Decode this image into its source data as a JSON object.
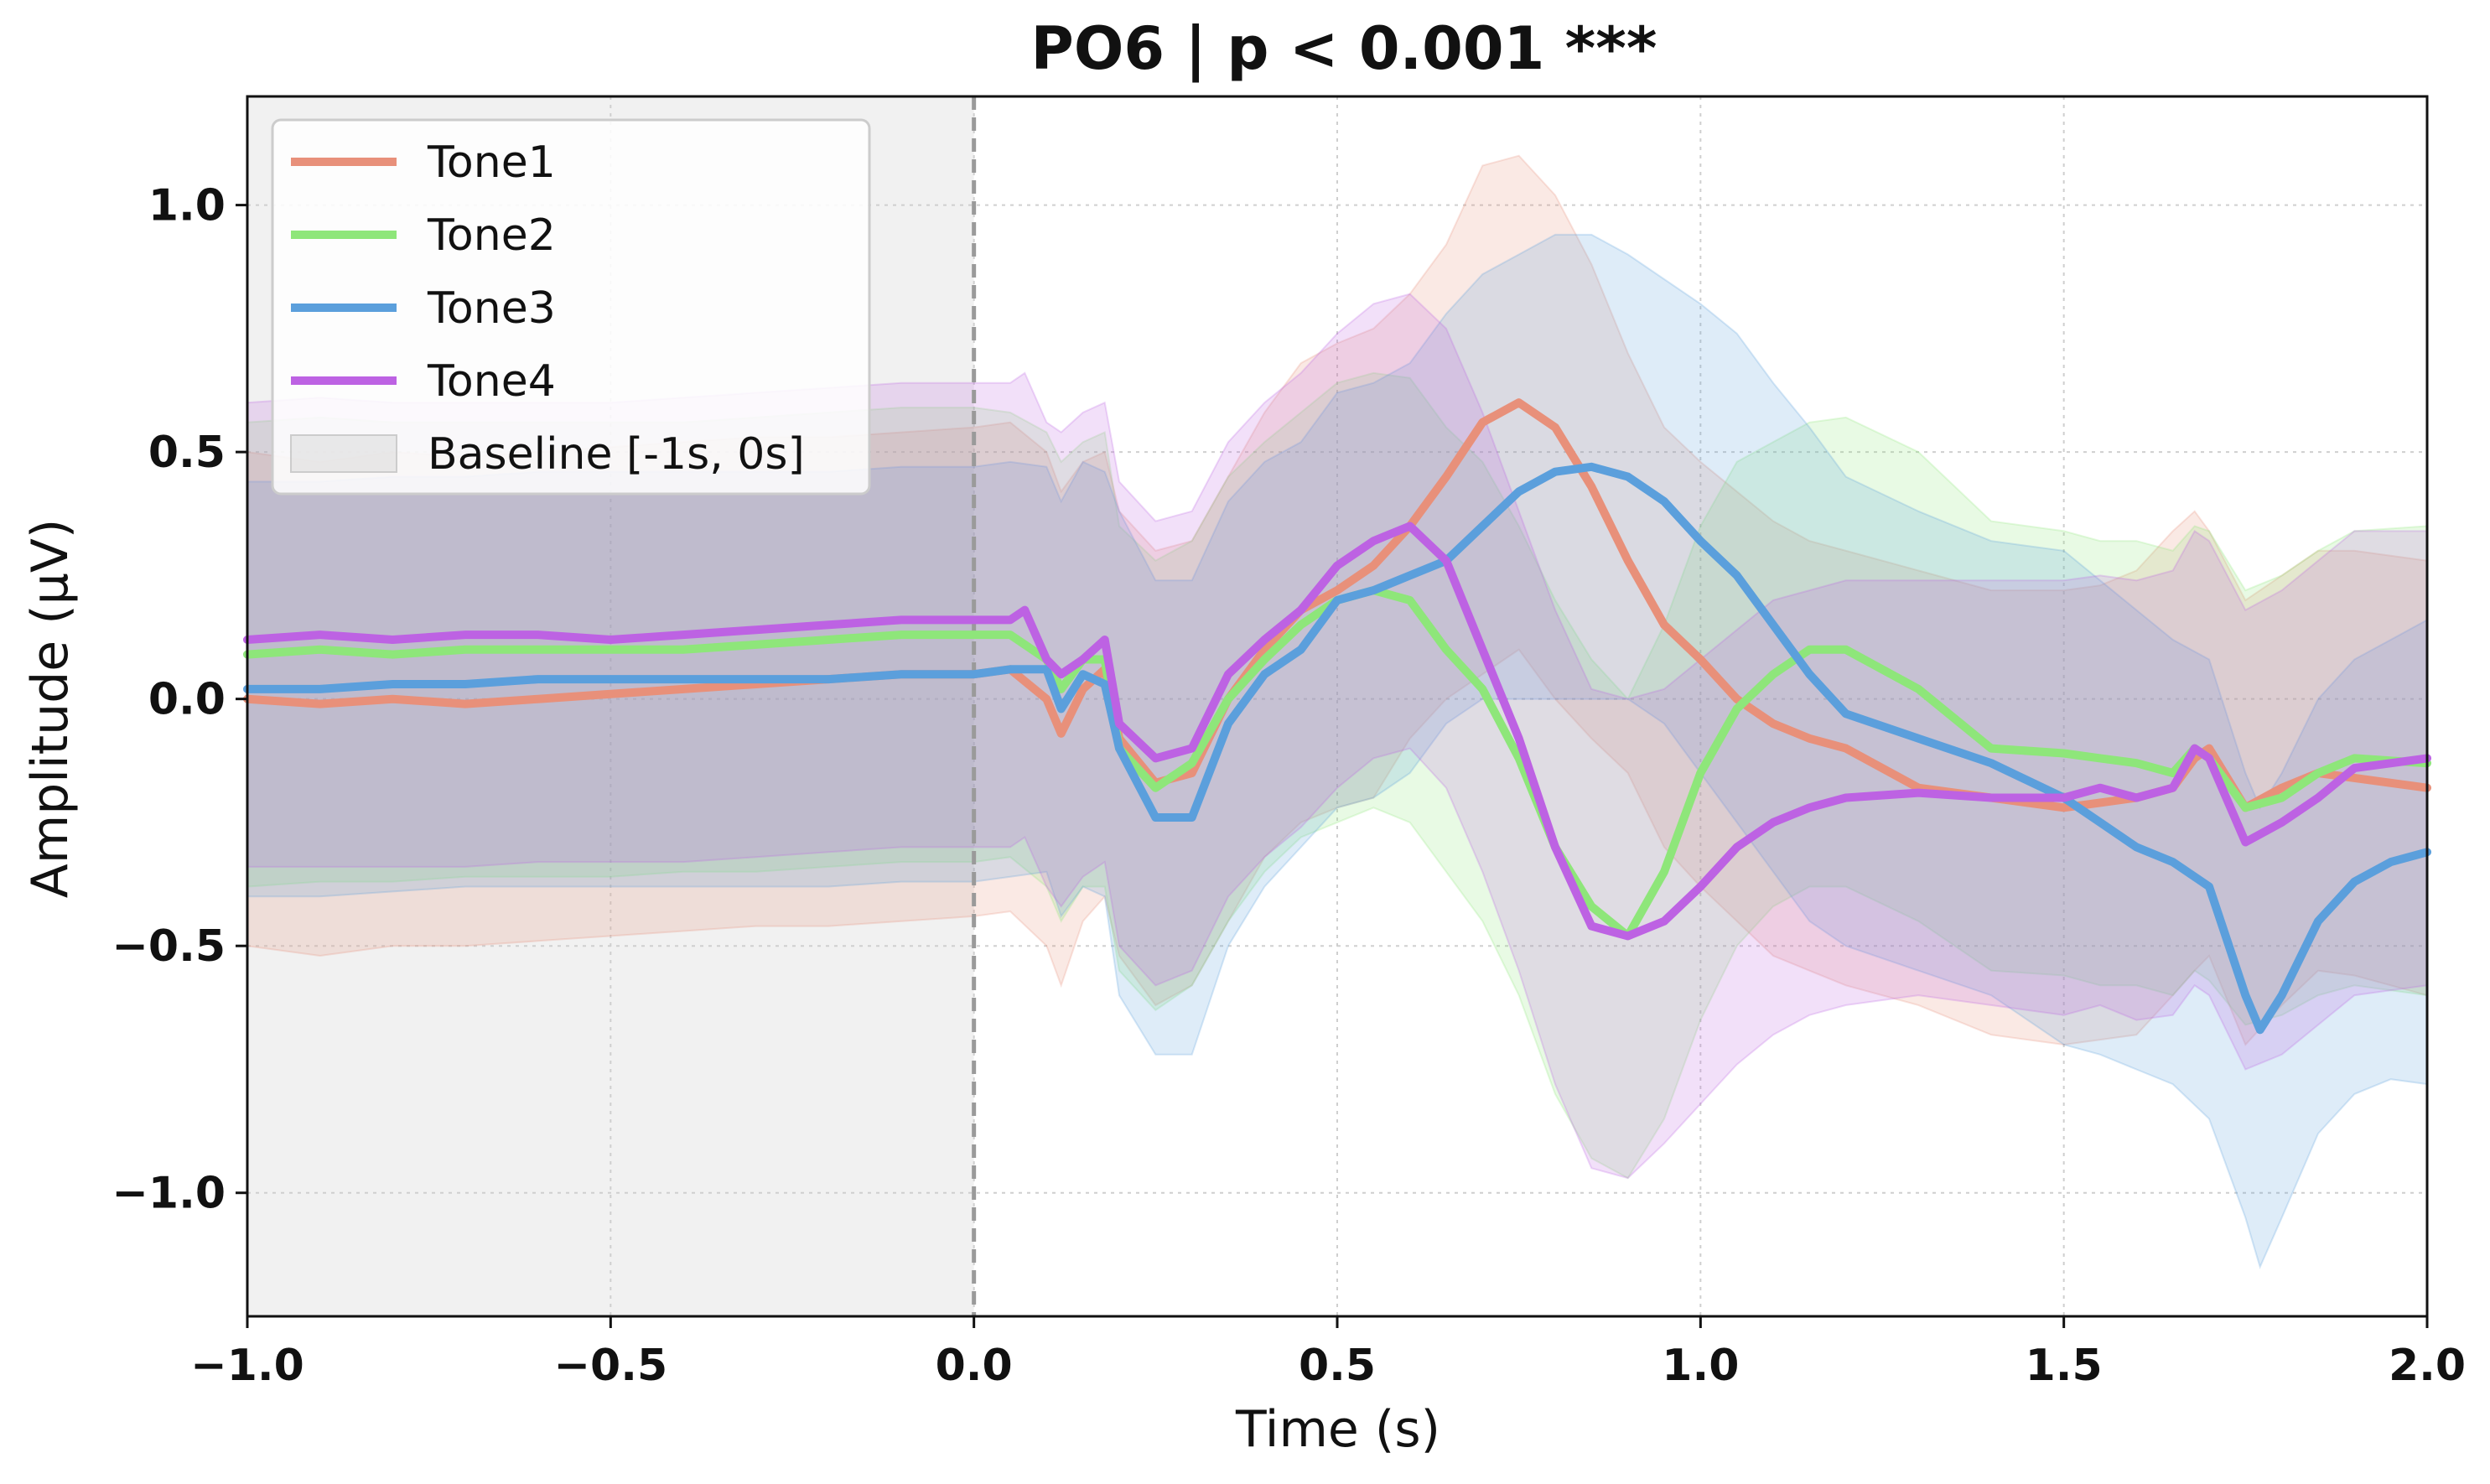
{
  "chart_data": {
    "type": "line",
    "title": "PO6 | p < 0.001 ***",
    "xlabel": "Time (s)",
    "ylabel": "Amplitude (μV)",
    "xlim": [
      -1.0,
      2.0
    ],
    "ylim": [
      -1.25,
      1.22
    ],
    "xticks": [
      -1.0,
      -0.5,
      0.0,
      0.5,
      1.0,
      1.5,
      2.0
    ],
    "xtick_labels": [
      "−1.0",
      "−0.5",
      "0.0",
      "0.5",
      "1.0",
      "1.5",
      "2.0"
    ],
    "yticks": [
      1.0,
      0.5,
      0.0,
      -0.5,
      -1.0
    ],
    "ytick_labels": [
      "1.0",
      "0.5",
      "0.0",
      "−0.5",
      "−1.0"
    ],
    "grid": true,
    "legend_position": "top-left",
    "baseline": {
      "label": "Baseline [-1s, 0s]",
      "start": -1.0,
      "end": 0.0,
      "color": "#d8d8d8"
    },
    "onset_marker": {
      "x": 0.0,
      "color": "#9a9a9a"
    },
    "series": [
      {
        "name": "Tone1",
        "color": "#e8907a",
        "x": [
          -1.0,
          -0.9,
          -0.8,
          -0.7,
          -0.6,
          -0.5,
          -0.4,
          -0.3,
          -0.2,
          -0.1,
          0.0,
          0.05,
          0.1,
          0.12,
          0.15,
          0.18,
          0.2,
          0.25,
          0.3,
          0.35,
          0.4,
          0.45,
          0.5,
          0.55,
          0.6,
          0.65,
          0.7,
          0.75,
          0.8,
          0.85,
          0.9,
          0.95,
          1.0,
          1.05,
          1.1,
          1.15,
          1.2,
          1.3,
          1.4,
          1.5,
          1.55,
          1.6,
          1.65,
          1.68,
          1.7,
          1.75,
          1.8,
          1.85,
          1.9,
          2.0
        ],
        "y": [
          0.0,
          -0.01,
          0.0,
          -0.01,
          0.0,
          0.01,
          0.02,
          0.03,
          0.04,
          0.05,
          0.05,
          0.06,
          0.0,
          -0.07,
          0.02,
          0.06,
          -0.08,
          -0.17,
          -0.15,
          0.0,
          0.1,
          0.18,
          0.22,
          0.27,
          0.35,
          0.45,
          0.56,
          0.6,
          0.55,
          0.43,
          0.28,
          0.15,
          0.08,
          0.0,
          -0.05,
          -0.08,
          -0.1,
          -0.18,
          -0.2,
          -0.22,
          -0.21,
          -0.2,
          -0.18,
          -0.12,
          -0.1,
          -0.22,
          -0.18,
          -0.15,
          -0.16,
          -0.18
        ],
        "lower": [
          -0.5,
          -0.52,
          -0.5,
          -0.5,
          -0.49,
          -0.48,
          -0.47,
          -0.46,
          -0.46,
          -0.45,
          -0.44,
          -0.43,
          -0.5,
          -0.58,
          -0.45,
          -0.4,
          -0.52,
          -0.62,
          -0.58,
          -0.45,
          -0.32,
          -0.25,
          -0.22,
          -0.2,
          -0.08,
          0.0,
          0.05,
          0.1,
          0.0,
          -0.08,
          -0.15,
          -0.3,
          -0.38,
          -0.45,
          -0.52,
          -0.55,
          -0.58,
          -0.62,
          -0.68,
          -0.7,
          -0.69,
          -0.68,
          -0.6,
          -0.55,
          -0.52,
          -0.7,
          -0.62,
          -0.55,
          -0.56,
          -0.6
        ],
        "upper": [
          0.5,
          0.48,
          0.5,
          0.49,
          0.5,
          0.51,
          0.52,
          0.53,
          0.53,
          0.54,
          0.55,
          0.56,
          0.5,
          0.42,
          0.48,
          0.5,
          0.38,
          0.3,
          0.32,
          0.45,
          0.58,
          0.68,
          0.72,
          0.75,
          0.82,
          0.92,
          1.08,
          1.1,
          1.02,
          0.88,
          0.7,
          0.55,
          0.48,
          0.42,
          0.36,
          0.32,
          0.3,
          0.26,
          0.22,
          0.22,
          0.23,
          0.26,
          0.34,
          0.38,
          0.34,
          0.2,
          0.25,
          0.3,
          0.3,
          0.28
        ]
      },
      {
        "name": "Tone2",
        "color": "#8ee67a",
        "x": [
          -1.0,
          -0.9,
          -0.8,
          -0.7,
          -0.6,
          -0.5,
          -0.4,
          -0.3,
          -0.2,
          -0.1,
          0.0,
          0.05,
          0.1,
          0.12,
          0.15,
          0.18,
          0.2,
          0.25,
          0.3,
          0.35,
          0.4,
          0.45,
          0.5,
          0.55,
          0.6,
          0.65,
          0.7,
          0.75,
          0.8,
          0.85,
          0.9,
          0.95,
          1.0,
          1.05,
          1.1,
          1.15,
          1.2,
          1.3,
          1.4,
          1.5,
          1.55,
          1.6,
          1.65,
          1.68,
          1.7,
          1.75,
          1.8,
          1.85,
          1.9,
          2.0
        ],
        "y": [
          0.09,
          0.1,
          0.09,
          0.1,
          0.1,
          0.1,
          0.1,
          0.11,
          0.12,
          0.13,
          0.13,
          0.13,
          0.08,
          0.02,
          0.08,
          0.08,
          -0.1,
          -0.18,
          -0.13,
          0.0,
          0.08,
          0.15,
          0.2,
          0.22,
          0.2,
          0.1,
          0.02,
          -0.12,
          -0.3,
          -0.42,
          -0.48,
          -0.35,
          -0.15,
          -0.02,
          0.05,
          0.1,
          0.1,
          0.02,
          -0.1,
          -0.11,
          -0.12,
          -0.13,
          -0.15,
          -0.1,
          -0.12,
          -0.22,
          -0.2,
          -0.15,
          -0.12,
          -0.13
        ],
        "lower": [
          -0.38,
          -0.37,
          -0.37,
          -0.36,
          -0.36,
          -0.36,
          -0.35,
          -0.35,
          -0.34,
          -0.33,
          -0.33,
          -0.32,
          -0.38,
          -0.45,
          -0.38,
          -0.38,
          -0.55,
          -0.63,
          -0.58,
          -0.45,
          -0.35,
          -0.28,
          -0.25,
          -0.22,
          -0.25,
          -0.35,
          -0.45,
          -0.6,
          -0.8,
          -0.93,
          -0.97,
          -0.85,
          -0.65,
          -0.5,
          -0.42,
          -0.38,
          -0.38,
          -0.45,
          -0.55,
          -0.56,
          -0.58,
          -0.58,
          -0.6,
          -0.55,
          -0.57,
          -0.66,
          -0.64,
          -0.6,
          -0.58,
          -0.6
        ],
        "upper": [
          0.56,
          0.57,
          0.56,
          0.56,
          0.56,
          0.56,
          0.56,
          0.57,
          0.58,
          0.59,
          0.59,
          0.58,
          0.54,
          0.48,
          0.52,
          0.54,
          0.35,
          0.28,
          0.32,
          0.45,
          0.52,
          0.58,
          0.64,
          0.66,
          0.65,
          0.55,
          0.48,
          0.35,
          0.2,
          0.08,
          0.0,
          0.15,
          0.35,
          0.48,
          0.52,
          0.56,
          0.57,
          0.5,
          0.36,
          0.34,
          0.32,
          0.32,
          0.3,
          0.35,
          0.34,
          0.22,
          0.25,
          0.3,
          0.34,
          0.35
        ]
      },
      {
        "name": "Tone3",
        "color": "#5b9fdc",
        "x": [
          -1.0,
          -0.9,
          -0.8,
          -0.7,
          -0.6,
          -0.5,
          -0.4,
          -0.3,
          -0.2,
          -0.1,
          0.0,
          0.05,
          0.1,
          0.12,
          0.15,
          0.18,
          0.2,
          0.25,
          0.3,
          0.35,
          0.4,
          0.45,
          0.5,
          0.55,
          0.6,
          0.65,
          0.7,
          0.75,
          0.8,
          0.85,
          0.9,
          0.95,
          1.0,
          1.05,
          1.1,
          1.15,
          1.2,
          1.3,
          1.4,
          1.5,
          1.55,
          1.6,
          1.65,
          1.7,
          1.75,
          1.77,
          1.8,
          1.85,
          1.9,
          1.95,
          2.0
        ],
        "y": [
          0.02,
          0.02,
          0.03,
          0.03,
          0.04,
          0.04,
          0.04,
          0.04,
          0.04,
          0.05,
          0.05,
          0.06,
          0.06,
          -0.02,
          0.05,
          0.03,
          -0.1,
          -0.24,
          -0.24,
          -0.05,
          0.05,
          0.1,
          0.2,
          0.22,
          0.25,
          0.28,
          0.35,
          0.42,
          0.46,
          0.47,
          0.45,
          0.4,
          0.32,
          0.25,
          0.15,
          0.05,
          -0.03,
          -0.08,
          -0.13,
          -0.2,
          -0.25,
          -0.3,
          -0.33,
          -0.38,
          -0.6,
          -0.67,
          -0.6,
          -0.45,
          -0.37,
          -0.33,
          -0.31
        ],
        "lower": [
          -0.4,
          -0.4,
          -0.39,
          -0.38,
          -0.38,
          -0.38,
          -0.38,
          -0.38,
          -0.38,
          -0.37,
          -0.37,
          -0.36,
          -0.35,
          -0.44,
          -0.38,
          -0.4,
          -0.6,
          -0.72,
          -0.72,
          -0.5,
          -0.38,
          -0.3,
          -0.22,
          -0.2,
          -0.15,
          -0.05,
          0.0,
          0.0,
          0.0,
          0.0,
          0.0,
          -0.05,
          -0.15,
          -0.25,
          -0.35,
          -0.45,
          -0.5,
          -0.55,
          -0.6,
          -0.7,
          -0.72,
          -0.75,
          -0.78,
          -0.85,
          -1.05,
          -1.15,
          -1.05,
          -0.88,
          -0.8,
          -0.77,
          -0.78
        ],
        "upper": [
          0.44,
          0.44,
          0.45,
          0.45,
          0.46,
          0.46,
          0.46,
          0.46,
          0.46,
          0.47,
          0.47,
          0.48,
          0.47,
          0.4,
          0.48,
          0.46,
          0.38,
          0.24,
          0.24,
          0.4,
          0.48,
          0.52,
          0.62,
          0.64,
          0.68,
          0.78,
          0.86,
          0.9,
          0.94,
          0.94,
          0.9,
          0.85,
          0.8,
          0.74,
          0.64,
          0.55,
          0.45,
          0.38,
          0.32,
          0.3,
          0.24,
          0.18,
          0.12,
          0.08,
          -0.15,
          -0.22,
          -0.15,
          0.0,
          0.08,
          0.12,
          0.16
        ]
      },
      {
        "name": "Tone4",
        "color": "#bd62e3",
        "x": [
          -1.0,
          -0.9,
          -0.8,
          -0.7,
          -0.6,
          -0.5,
          -0.4,
          -0.3,
          -0.2,
          -0.1,
          0.0,
          0.05,
          0.07,
          0.1,
          0.12,
          0.15,
          0.18,
          0.2,
          0.25,
          0.3,
          0.35,
          0.4,
          0.45,
          0.5,
          0.55,
          0.6,
          0.65,
          0.7,
          0.75,
          0.8,
          0.85,
          0.9,
          0.95,
          1.0,
          1.05,
          1.1,
          1.15,
          1.2,
          1.3,
          1.4,
          1.5,
          1.55,
          1.6,
          1.65,
          1.68,
          1.7,
          1.75,
          1.8,
          1.85,
          1.9,
          2.0
        ],
        "y": [
          0.12,
          0.13,
          0.12,
          0.13,
          0.13,
          0.12,
          0.13,
          0.14,
          0.15,
          0.16,
          0.16,
          0.16,
          0.18,
          0.08,
          0.05,
          0.08,
          0.12,
          -0.05,
          -0.12,
          -0.1,
          0.05,
          0.12,
          0.18,
          0.27,
          0.32,
          0.35,
          0.28,
          0.1,
          -0.08,
          -0.3,
          -0.46,
          -0.48,
          -0.45,
          -0.38,
          -0.3,
          -0.25,
          -0.22,
          -0.2,
          -0.19,
          -0.2,
          -0.2,
          -0.18,
          -0.2,
          -0.18,
          -0.1,
          -0.12,
          -0.29,
          -0.25,
          -0.2,
          -0.14,
          -0.12
        ],
        "lower": [
          -0.34,
          -0.34,
          -0.34,
          -0.34,
          -0.33,
          -0.33,
          -0.33,
          -0.32,
          -0.31,
          -0.3,
          -0.3,
          -0.3,
          -0.28,
          -0.38,
          -0.42,
          -0.36,
          -0.33,
          -0.5,
          -0.58,
          -0.55,
          -0.4,
          -0.32,
          -0.26,
          -0.18,
          -0.12,
          -0.1,
          -0.18,
          -0.35,
          -0.55,
          -0.78,
          -0.95,
          -0.97,
          -0.9,
          -0.82,
          -0.74,
          -0.68,
          -0.64,
          -0.62,
          -0.6,
          -0.62,
          -0.64,
          -0.62,
          -0.65,
          -0.64,
          -0.58,
          -0.6,
          -0.75,
          -0.72,
          -0.66,
          -0.6,
          -0.58
        ],
        "upper": [
          0.6,
          0.61,
          0.6,
          0.6,
          0.6,
          0.6,
          0.61,
          0.62,
          0.63,
          0.64,
          0.64,
          0.64,
          0.66,
          0.56,
          0.54,
          0.58,
          0.6,
          0.44,
          0.36,
          0.38,
          0.52,
          0.6,
          0.66,
          0.74,
          0.8,
          0.82,
          0.75,
          0.58,
          0.38,
          0.18,
          0.02,
          0.0,
          0.02,
          0.08,
          0.14,
          0.2,
          0.22,
          0.24,
          0.24,
          0.24,
          0.24,
          0.25,
          0.24,
          0.26,
          0.34,
          0.32,
          0.18,
          0.22,
          0.28,
          0.34,
          0.34
        ]
      }
    ]
  }
}
